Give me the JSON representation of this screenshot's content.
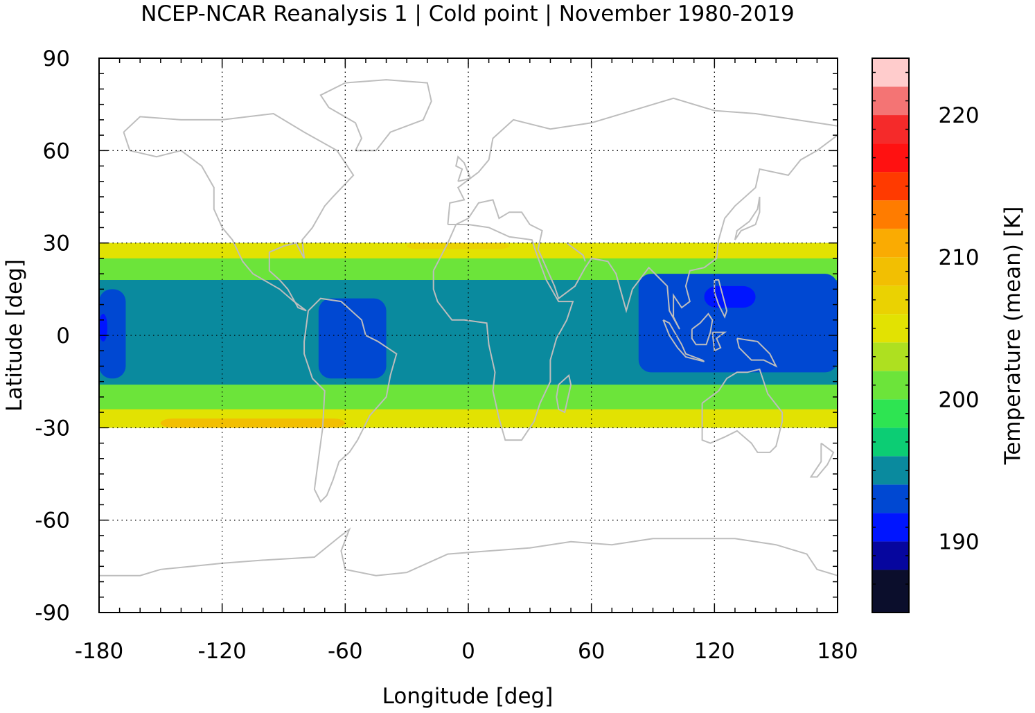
{
  "chart_data": {
    "type": "heatmap",
    "title": "NCEP-NCAR Reanalysis 1 | Cold point | November 1980-2019",
    "xlabel": "Longitude [deg]",
    "ylabel": "Latitude [deg]",
    "xlim": [
      -180,
      180
    ],
    "ylim": [
      -90,
      90
    ],
    "xticks": [
      -180,
      -120,
      -60,
      0,
      60,
      120,
      180
    ],
    "yticks": [
      90,
      60,
      30,
      0,
      -30,
      -60,
      -90
    ],
    "x_tick_labels": [
      "-180",
      "-120",
      "-60",
      "0",
      "60",
      "120",
      "180"
    ],
    "y_tick_labels": [
      "90",
      "60",
      "30",
      "0",
      "-30",
      "-60",
      "-90"
    ],
    "grid": true,
    "data_extent": {
      "lat_min": -30,
      "lat_max": 30,
      "lon_min": -180,
      "lon_max": 180
    },
    "colorbar": {
      "label": "Temperature (mean) [K]",
      "range": [
        185,
        224
      ],
      "ticks": [
        190,
        200,
        210,
        220
      ],
      "tick_labels": [
        "190",
        "200",
        "210",
        "220"
      ],
      "levels": [
        {
          "value": 186,
          "color": "#0b0e2c"
        },
        {
          "value": 188,
          "color": "#06069e"
        },
        {
          "value": 190,
          "color": "#0015ff"
        },
        {
          "value": 192,
          "color": "#0048d2"
        },
        {
          "value": 194,
          "color": "#0a8a9e"
        },
        {
          "value": 196,
          "color": "#0ccd74"
        },
        {
          "value": 198,
          "color": "#2ee452"
        },
        {
          "value": 200,
          "color": "#6ce43a"
        },
        {
          "value": 202,
          "color": "#aee020"
        },
        {
          "value": 204,
          "color": "#e2e202"
        },
        {
          "value": 206,
          "color": "#ead202"
        },
        {
          "value": 208,
          "color": "#f2bf02"
        },
        {
          "value": 210,
          "color": "#faab02"
        },
        {
          "value": 212,
          "color": "#ff7c00"
        },
        {
          "value": 214,
          "color": "#ff3a00"
        },
        {
          "value": 216,
          "color": "#ff1111"
        },
        {
          "value": 218,
          "color": "#f52a2a"
        },
        {
          "value": 220,
          "color": "#f47474"
        },
        {
          "value": 222,
          "color": "#ffcccc"
        }
      ]
    },
    "coastline_color": "#bdbdbd",
    "regions": [
      {
        "name": "background",
        "value": 201
      },
      {
        "name": "cold-band-equator",
        "value": 195,
        "lon": [
          -180,
          180
        ],
        "lat": [
          -16,
          18
        ]
      },
      {
        "name": "cold-pool-dateline",
        "value": 193,
        "lon": [
          -180,
          -167
        ],
        "lat": [
          -14,
          15
        ]
      },
      {
        "name": "cold-pool-dateline-core",
        "value": 190.5,
        "lon": [
          -180,
          -176
        ],
        "lat": [
          -2,
          7
        ]
      },
      {
        "name": "cold-pool-south-america",
        "value": 193,
        "lon": [
          -73,
          -40
        ],
        "lat": [
          -14,
          12
        ]
      },
      {
        "name": "cold-pool-west-pacific",
        "value": 193,
        "lon": [
          83,
          180
        ],
        "lat": [
          -12,
          20
        ]
      },
      {
        "name": "cold-pool-west-pacific-core",
        "value": 190.5,
        "lon": [
          115,
          140
        ],
        "lat": [
          9,
          16
        ]
      },
      {
        "name": "warm-band-north",
        "value": 205,
        "lon": [
          -180,
          180
        ],
        "lat": [
          25,
          30
        ]
      },
      {
        "name": "warm-band-south",
        "value": 205,
        "lon": [
          -180,
          180
        ],
        "lat": [
          -30,
          -24
        ]
      },
      {
        "name": "warm-core-north-atlantic",
        "value": 207,
        "lon": [
          -30,
          20
        ],
        "lat": [
          28,
          30
        ]
      },
      {
        "name": "warm-core-south-pacific",
        "value": 208,
        "lon": [
          -150,
          -60
        ],
        "lat": [
          -30,
          -27
        ]
      }
    ]
  }
}
